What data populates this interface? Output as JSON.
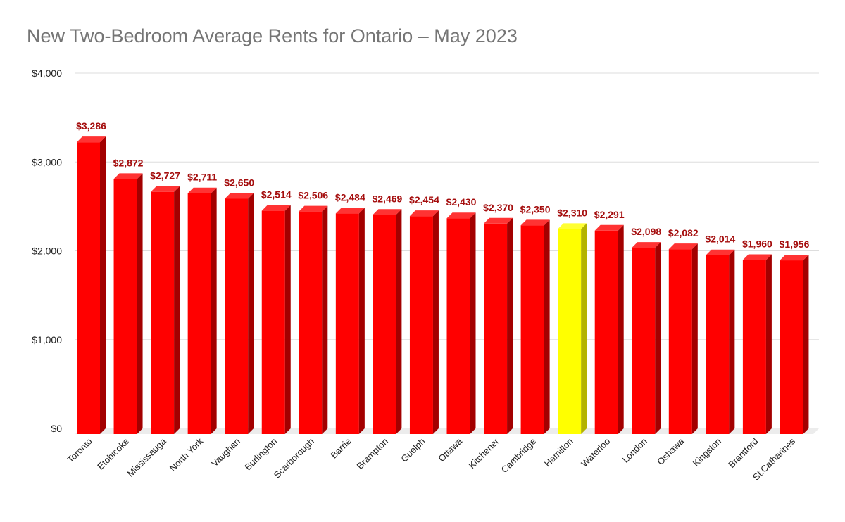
{
  "chart_data": {
    "type": "bar",
    "title": "New Two-Bedroom Average Rents for Ontario – May 2023",
    "xlabel": "",
    "ylabel": "",
    "ylim": [
      0,
      4000
    ],
    "yticks": [
      "$0",
      "$1,000",
      "$2,000",
      "$3,000",
      "$4,000"
    ],
    "ytick_values": [
      0,
      1000,
      2000,
      3000,
      4000
    ],
    "grid": true,
    "legend": "none",
    "style": "3d",
    "colors": {
      "default": "#ff0000",
      "default_side": "#a30000",
      "default_top": "#ff3333",
      "highlight": "#ffff00",
      "highlight_side": "#b3b300",
      "highlight_top": "#ffff33",
      "label": "#a50e0e"
    },
    "highlight_category": "Hamilton",
    "categories": [
      "Toronto",
      "Etobicoke",
      "Mississauga",
      "North York",
      "Vaughan",
      "Burlington",
      "Scarborough",
      "Barrie",
      "Brampton",
      "Guelph",
      "Ottawa",
      "Kitchener",
      "Cambridge",
      "Hamilton",
      "Waterloo",
      "London",
      "Oshawa",
      "Kingston",
      "Brantford",
      "St.Catharines"
    ],
    "values": [
      3286,
      2872,
      2727,
      2711,
      2650,
      2514,
      2506,
      2484,
      2469,
      2454,
      2430,
      2370,
      2350,
      2310,
      2291,
      2098,
      2082,
      2014,
      1960,
      1956
    ],
    "data_labels": [
      "$3,286",
      "$2,872",
      "$2,727",
      "$2,711",
      "$2,650",
      "$2,514",
      "$2,506",
      "$2,484",
      "$2,469",
      "$2,454",
      "$2,430",
      "$2,370",
      "$2,350",
      "$2,310",
      "$2,291",
      "$2,098",
      "$2,082",
      "$2,014",
      "$1,960",
      "$1,956"
    ]
  }
}
